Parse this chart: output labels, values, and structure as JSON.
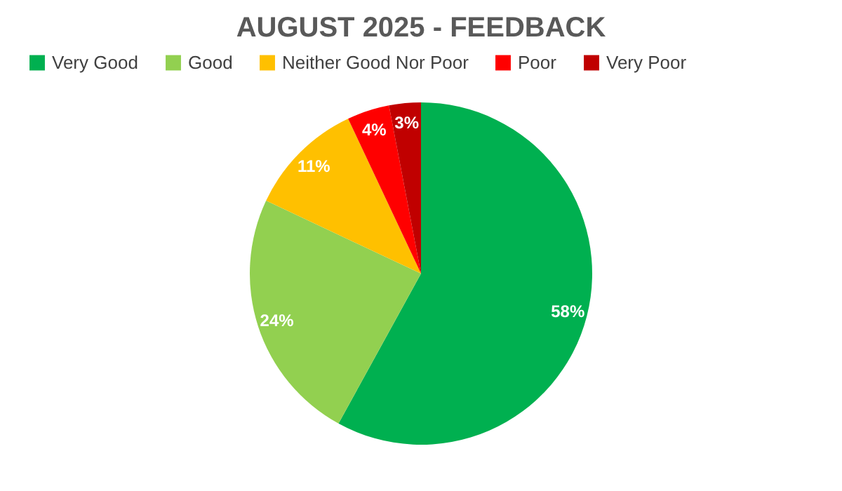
{
  "chart_data": {
    "type": "pie",
    "title": "AUGUST 2025 - FEEDBACK",
    "categories": [
      "Very Good",
      "Good",
      "Neither Good Nor Poor",
      "Poor",
      "Very Poor"
    ],
    "values": [
      58,
      24,
      11,
      4,
      3
    ],
    "colors": [
      "#00b050",
      "#92d050",
      "#ffc000",
      "#ff0000",
      "#c00000"
    ],
    "value_labels": [
      "58%",
      "24%",
      "11%",
      "4%",
      "3%"
    ],
    "legend": "top"
  }
}
